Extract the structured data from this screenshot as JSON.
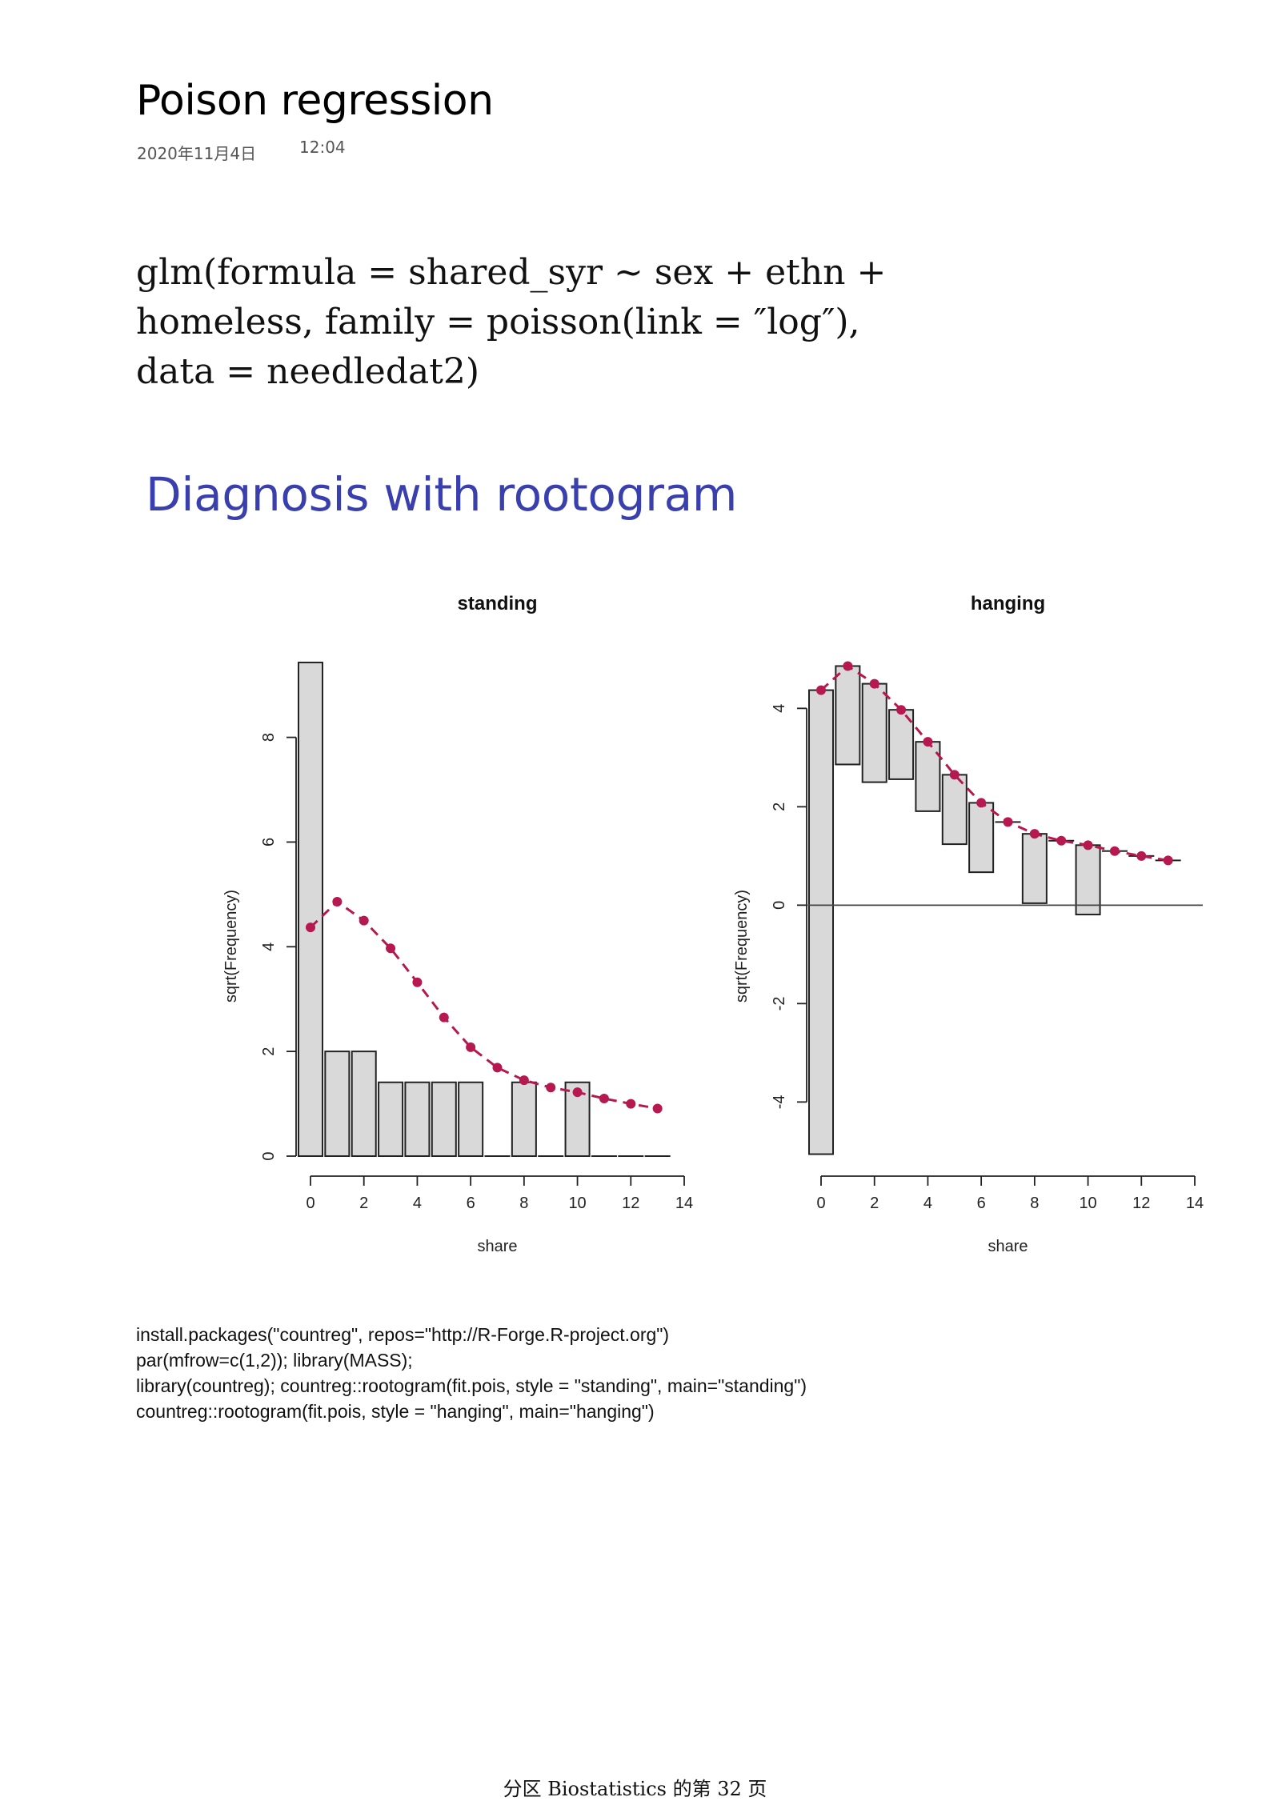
{
  "page": {
    "title": "Poison regression",
    "date": "2020年11月4日",
    "time": "12:04",
    "formula_lines": [
      "glm(formula = shared_syr ~ sex + ethn +",
      "homeless, family = poisson(link = ″log″),",
      "data = needledat2)"
    ],
    "slide_heading": "Diagnosis with rootogram",
    "r_code_lines": [
      "install.packages(\"countreg\", repos=\"http://R-Forge.R-project.org\")",
      "par(mfrow=c(1,2)); library(MASS);",
      "library(countreg); countreg::rootogram(fit.pois, style = \"standing\", main=\"standing\")",
      "countreg::rootogram(fit.pois, style = \"hanging\", main=\"hanging\")"
    ],
    "footer": "分区 Biostatistics 的第 32 页"
  },
  "chart_data": [
    {
      "type": "bar",
      "style": "standing",
      "title": "standing",
      "xlabel": "share",
      "ylabel": "sqrt(Frequency)",
      "xlim": [
        0,
        14
      ],
      "ylim": [
        0,
        9.4
      ],
      "x_ticks": [
        0,
        2,
        4,
        6,
        8,
        10,
        12,
        14
      ],
      "y_ticks": [
        0,
        2,
        4,
        6,
        8
      ],
      "bars": {
        "x": [
          0,
          1,
          2,
          3,
          4,
          5,
          6,
          7,
          8,
          9,
          10,
          11,
          12,
          13
        ],
        "sqrt_observed": [
          9.43,
          2.0,
          2.0,
          1.41,
          1.41,
          1.41,
          1.41,
          0,
          1.41,
          0,
          1.41,
          0,
          0,
          0
        ]
      },
      "expected_curve": {
        "color": "#b5194f",
        "x": [
          0,
          1,
          2,
          3,
          4,
          5,
          6,
          7,
          8,
          9,
          10,
          11,
          12,
          13
        ],
        "y": [
          4.37,
          4.86,
          4.5,
          3.97,
          3.32,
          2.65,
          2.08,
          1.69,
          1.45,
          1.31,
          1.22,
          1.1,
          1.0,
          0.91
        ]
      },
      "grid": false
    },
    {
      "type": "bar",
      "style": "hanging",
      "title": "hanging",
      "xlabel": "share",
      "ylabel": "sqrt(Frequency)",
      "xlim": [
        0,
        14
      ],
      "ylim": [
        -5.1,
        4.9
      ],
      "x_ticks": [
        0,
        2,
        4,
        6,
        8,
        10,
        12,
        14
      ],
      "y_ticks": [
        -4,
        -2,
        0,
        2,
        4
      ],
      "reference_line_y": 0,
      "bars": {
        "x": [
          0,
          1,
          2,
          3,
          4,
          5,
          6,
          7,
          8,
          9,
          10,
          11,
          12,
          13
        ],
        "top": [
          4.37,
          4.86,
          4.5,
          3.97,
          3.32,
          2.65,
          2.08,
          1.69,
          1.45,
          1.31,
          1.22,
          1.1,
          1.0,
          0.91
        ],
        "bottom": [
          -5.06,
          2.86,
          2.5,
          2.56,
          1.91,
          1.24,
          0.67,
          1.69,
          0.04,
          1.31,
          -0.19,
          1.1,
          1.0,
          0.91
        ]
      },
      "expected_curve": {
        "color": "#b5194f",
        "x": [
          0,
          1,
          2,
          3,
          4,
          5,
          6,
          7,
          8,
          9,
          10,
          11,
          12,
          13
        ],
        "y": [
          4.37,
          4.86,
          4.5,
          3.97,
          3.32,
          2.65,
          2.08,
          1.69,
          1.45,
          1.31,
          1.22,
          1.1,
          1.0,
          0.91
        ]
      },
      "grid": false
    }
  ]
}
